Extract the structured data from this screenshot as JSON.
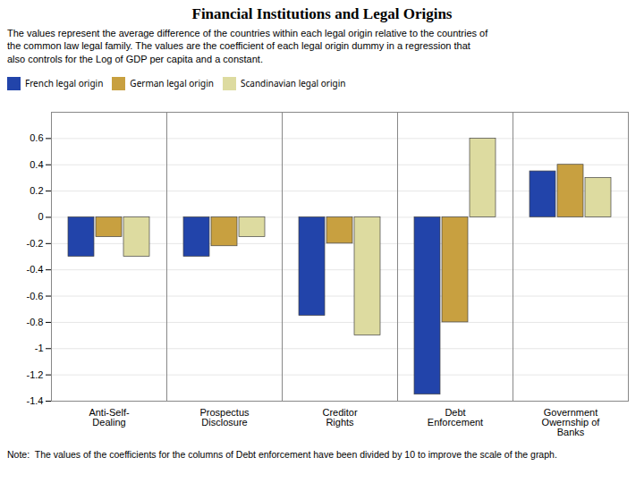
{
  "chart_data": {
    "type": "bar",
    "title": "Financial Institutions and Legal Origins",
    "subtitle": "The values represent the average difference of the countries within each legal origin relative to the countries of\nthe common law legal family.  The values are the coefficient of each legal origin dummy in a regression that\nalso controls for the Log of GDP per capita and a constant.",
    "annotations": [
      "Note:  The values of the coefficients for the columns of Debt enforcement have been divided by 10 to improve the scale of the graph."
    ],
    "categories": [
      "Anti-Self-\nDealing",
      "Prospectus\nDisclosure",
      "Creditor\nRights",
      "Debt\nEnforcement",
      "Government\nOwernship of\nBanks"
    ],
    "series": [
      {
        "name": "French legal origin",
        "color": "#2244AA",
        "values": [
          -0.3,
          -0.3,
          -0.75,
          -1.35,
          0.35
        ]
      },
      {
        "name": "German legal origin",
        "color": "#C8A040",
        "values": [
          -0.15,
          -0.22,
          -0.2,
          -0.8,
          0.4
        ]
      },
      {
        "name": "Scandinavian legal origin",
        "color": "#DDDBA0",
        "values": [
          -0.3,
          -0.15,
          -0.9,
          0.6,
          0.3
        ]
      }
    ],
    "ylim": [
      -1.4,
      0.8
    ],
    "yticks": [
      -1.4,
      -1.2,
      -1.0,
      -0.8,
      -0.6,
      -0.4,
      -0.2,
      0.0,
      0.2,
      0.4,
      0.6
    ],
    "grid": true,
    "legend": "upper left"
  }
}
